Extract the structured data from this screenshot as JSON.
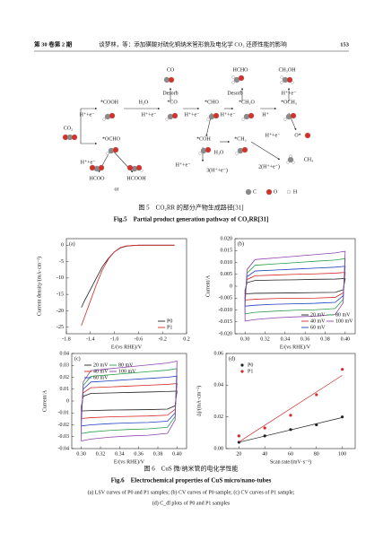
{
  "header": {
    "left": "第 30 卷第 2 期",
    "center": "谈梦林，等：添加磺酸对硫化铜纳米管形貌及电化学 CO₂ 还原性能的影响",
    "page": "153"
  },
  "figure5": {
    "labels": [
      "CO",
      "HCHO",
      "CH₃OH",
      "Desorb",
      "Desorb",
      "H⁺+e⁻",
      "*COOH",
      "H₂O",
      "*CO",
      "*CHO",
      "*CH₂O",
      "*OCH₃",
      "H⁺+e⁻",
      "H⁺+e⁻",
      "H⁺+e⁻",
      "H⁺+e⁻",
      "H⁺",
      "CO₂",
      "H⁺+e⁻",
      "O*",
      "*OCHO",
      "*COH",
      "*CH₂",
      "H⁺+e⁻",
      "H₂O",
      "H⁺+e⁻",
      "3(H⁺+e⁻)",
      "2(H⁺+e⁻)",
      "CH₄",
      "HCOO",
      "HCOOH",
      "or",
      "C",
      "O",
      "H"
    ],
    "caption_cn": "图 5　CO₂RR 的部分产物生成路径[31]",
    "caption_en": "Fig.5　Partial product generation pathway of CO₂RR[31]"
  },
  "figure6": {
    "caption_cn": "图 6　CuS 微/纳米管的电化学性能",
    "caption_en": "Fig.6　Electrochemical properties of CuS micro/nano-tubes",
    "caption_lines": [
      "(a) LSV curves of P0 and P1 samples; (b) CV curves of P0 sample; (c) CV curves of P1 sample;",
      "(d) C_dl plots of P0 and P1 samples"
    ]
  },
  "chart_data": [
    {
      "type": "line",
      "label": "(a)",
      "xlabel": "E/(vs RHE)/V",
      "ylabel": "Current density/(mA·cm⁻²)",
      "xlim": [
        -1.8,
        0.2
      ],
      "ylim": [
        -27,
        2
      ],
      "xticks": [
        -1.8,
        -1.4,
        {
          "value": -1,
          "label": "-1.0"
        },
        -0.6,
        -0.2,
        0.2
      ],
      "yticks": [
        0,
        -5,
        -10,
        -15,
        -20,
        -25
      ],
      "legend": "lower right",
      "legend_columns": 1,
      "x": [
        -1.55,
        -1.5,
        -1.4,
        -1.3,
        -1.2,
        -1.1,
        -1.0,
        -0.9,
        -0.8,
        -0.7,
        -0.6,
        -0.4,
        -0.2,
        0.0
      ],
      "series": [
        {
          "name": "P0",
          "color": "#222222",
          "values": [
            -19,
            -17,
            -13.5,
            -10,
            -6.5,
            -4,
            -2,
            -0.8,
            -0.3,
            -0.1,
            0,
            0,
            0,
            0
          ]
        },
        {
          "name": "P1",
          "color": "#d62728",
          "values": [
            -24.5,
            -22,
            -17,
            -12,
            -7.5,
            -4.2,
            -2,
            -0.7,
            -0.2,
            -0.1,
            0,
            0,
            0,
            0
          ]
        }
      ]
    },
    {
      "type": "loop",
      "label": "(b)",
      "xlabel": "E/(vs RHE)/V",
      "ylabel": "Current/A",
      "xlim": [
        0.29,
        0.41
      ],
      "ylim": [
        -0.02,
        0.02
      ],
      "xticks": [
        {
          "value": 0.3,
          "label": "0.30"
        },
        0.32,
        0.34,
        0.36,
        0.38,
        {
          "value": 0.4,
          "label": "0.40"
        }
      ],
      "yticks": [
        {
          "value": 0.02,
          "label": "0.020"
        },
        {
          "value": 0.015,
          "label": "0.015"
        },
        {
          "value": 0.01,
          "label": "0.010"
        },
        {
          "value": 0.005,
          "label": "0.005"
        },
        0,
        {
          "value": -0.005,
          "label": "-0.005"
        },
        {
          "value": -0.01,
          "label": "-0.010"
        },
        {
          "value": -0.015,
          "label": "-0.015"
        },
        {
          "value": -0.02,
          "label": "-0.020"
        }
      ],
      "legend": "lower right",
      "legend_columns": 2,
      "x": [
        0.3,
        0.302,
        0.31,
        0.33,
        0.35,
        0.37,
        0.39,
        0.4,
        0.398,
        0.39,
        0.37,
        0.35,
        0.33,
        0.31,
        0.3
      ],
      "series": [
        {
          "name": "20 mV",
          "color": "#222222",
          "values": [
            -0.0018,
            0.0015,
            0.0024,
            0.0026,
            0.0027,
            0.0029,
            0.003,
            0.0032,
            -0.0015,
            -0.0026,
            -0.0027,
            -0.0028,
            -0.0029,
            -0.003,
            -0.0032
          ]
        },
        {
          "name": "40 mV",
          "color": "#d62728",
          "values": [
            -0.0033,
            0.0028,
            0.0044,
            0.0047,
            0.005,
            0.0052,
            0.0055,
            0.0058,
            -0.0028,
            -0.0047,
            -0.005,
            -0.0051,
            -0.0052,
            -0.0055,
            -0.0058
          ]
        },
        {
          "name": "60 mV",
          "color": "#1f3fbf",
          "values": [
            -0.0048,
            0.004,
            0.0064,
            0.0068,
            0.0072,
            0.0076,
            0.008,
            0.0084,
            -0.004,
            -0.0068,
            -0.0072,
            -0.0074,
            -0.0076,
            -0.008,
            -0.0084
          ]
        },
        {
          "name": "80 mV",
          "color": "#2a9d4a",
          "values": [
            -0.0066,
            0.0055,
            0.0088,
            0.0094,
            0.0099,
            0.0105,
            0.011,
            0.0116,
            -0.0055,
            -0.0094,
            -0.0099,
            -0.0101,
            -0.0105,
            -0.011,
            -0.0116
          ]
        },
        {
          "name": "100 mV",
          "color": "#8e44ad",
          "values": [
            -0.0084,
            0.007,
            0.0112,
            0.0119,
            0.0126,
            0.0133,
            0.014,
            0.0147,
            -0.007,
            -0.0119,
            -0.0126,
            -0.0129,
            -0.0133,
            -0.014,
            -0.0147
          ]
        }
      ]
    },
    {
      "type": "loop",
      "label": "(c)",
      "xlabel": "E/(vs RHE)/V",
      "ylabel": "Current/A",
      "xlim": [
        0.29,
        0.41
      ],
      "ylim": [
        -0.04,
        0.04
      ],
      "xticks": [
        {
          "value": 0.3,
          "label": "0.30"
        },
        0.32,
        0.34,
        0.36,
        0.38,
        {
          "value": 0.4,
          "label": "0.40"
        }
      ],
      "yticks": [
        0.04,
        0.03,
        0.02,
        0.01,
        0,
        -0.01,
        -0.02,
        -0.03,
        -0.04
      ],
      "legend": "upper left",
      "legend_columns": 2,
      "x": [
        0.3,
        0.302,
        0.31,
        0.33,
        0.35,
        0.37,
        0.39,
        0.4,
        0.398,
        0.39,
        0.37,
        0.35,
        0.33,
        0.31,
        0.3
      ],
      "series": [
        {
          "name": "20 mV",
          "color": "#222222",
          "values": [
            -0.0048,
            0.004,
            0.0064,
            0.0068,
            0.0072,
            0.0076,
            0.008,
            0.0084,
            -0.004,
            -0.0068,
            -0.0072,
            -0.0074,
            -0.0076,
            -0.008,
            -0.0084
          ]
        },
        {
          "name": "40 mV",
          "color": "#d62728",
          "values": [
            -0.0084,
            0.007,
            0.0112,
            0.0119,
            0.0126,
            0.0133,
            0.014,
            0.0147,
            -0.007,
            -0.0119,
            -0.0126,
            -0.0129,
            -0.0133,
            -0.014,
            -0.0147
          ]
        },
        {
          "name": "60 mV",
          "color": "#1f3fbf",
          "values": [
            -0.012,
            0.01,
            0.016,
            0.017,
            0.018,
            0.019,
            0.02,
            0.021,
            -0.01,
            -0.017,
            -0.018,
            -0.0184,
            -0.019,
            -0.02,
            -0.021
          ]
        },
        {
          "name": "80 mV",
          "color": "#2a9d4a",
          "values": [
            -0.0156,
            0.013,
            0.0208,
            0.0221,
            0.0234,
            0.0247,
            0.026,
            0.0273,
            -0.013,
            -0.0221,
            -0.0234,
            -0.0239,
            -0.0247,
            -0.026,
            -0.0273
          ]
        },
        {
          "name": "100 mV",
          "color": "#8e44ad",
          "values": [
            -0.0192,
            0.016,
            0.0256,
            0.0272,
            0.0288,
            0.0304,
            0.032,
            0.0336,
            -0.016,
            -0.0272,
            -0.0288,
            -0.0294,
            -0.0304,
            -0.032,
            -0.0336
          ]
        }
      ]
    },
    {
      "type": "scatter",
      "label": "(d)",
      "xlabel": "Scan rate/(mV·s⁻¹)",
      "ylabel": "Δj/(mA·cm⁻²)",
      "xlim": [
        10,
        110
      ],
      "ylim": [
        0,
        0.06
      ],
      "xticks": [
        20,
        40,
        60,
        80,
        100
      ],
      "yticks": [
        {
          "value": 0,
          "label": "0.00"
        },
        0.02,
        0.04,
        0.06
      ],
      "legend": "upper left",
      "legend_columns": 1,
      "x": [
        20,
        40,
        60,
        80,
        100
      ],
      "series": [
        {
          "name": "P0",
          "color": "#222222",
          "values": [
            0.004,
            0.008,
            0.012,
            0.015,
            0.02
          ]
        },
        {
          "name": "P1",
          "color": "#d62728",
          "values": [
            0.008,
            0.013,
            0.021,
            0.034,
            0.05
          ]
        }
      ]
    }
  ]
}
